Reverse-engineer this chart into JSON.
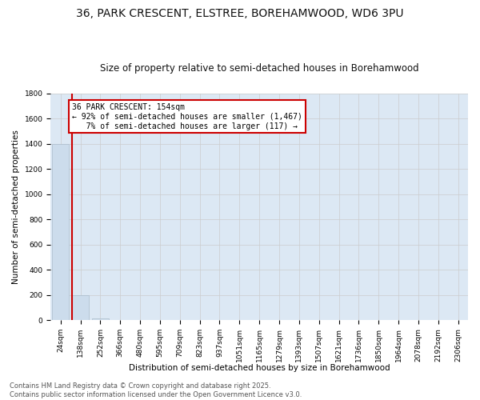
{
  "title": "36, PARK CRESCENT, ELSTREE, BOREHAMWOOD, WD6 3PU",
  "subtitle": "Size of property relative to semi-detached houses in Borehamwood",
  "xlabel": "Distribution of semi-detached houses by size in Borehamwood",
  "ylabel": "Number of semi-detached properties",
  "categories": [
    "24sqm",
    "138sqm",
    "252sqm",
    "366sqm",
    "480sqm",
    "595sqm",
    "709sqm",
    "823sqm",
    "937sqm",
    "1051sqm",
    "1165sqm",
    "1279sqm",
    "1393sqm",
    "1507sqm",
    "1621sqm",
    "1736sqm",
    "1850sqm",
    "1964sqm",
    "2078sqm",
    "2192sqm",
    "2306sqm"
  ],
  "values": [
    1400,
    200,
    15,
    5,
    2,
    0,
    0,
    0,
    0,
    0,
    0,
    0,
    0,
    0,
    0,
    0,
    0,
    0,
    0,
    0,
    0
  ],
  "bar_color": "#ccdcec",
  "bar_edge_color": "#aabccc",
  "vline_color": "#cc0000",
  "annotation_line1": "36 PARK CRESCENT: 154sqm",
  "annotation_line2": "← 92% of semi-detached houses are smaller (1,467)",
  "annotation_line3": "   7% of semi-detached houses are larger (117) →",
  "annotation_box_color": "#cc0000",
  "annotation_bg_color": "#ffffff",
  "ylim": [
    0,
    1800
  ],
  "yticks": [
    0,
    200,
    400,
    600,
    800,
    1000,
    1200,
    1400,
    1600,
    1800
  ],
  "grid_color": "#cccccc",
  "bg_color": "#dce8f4",
  "footer_text": "Contains HM Land Registry data © Crown copyright and database right 2025.\nContains public sector information licensed under the Open Government Licence v3.0.",
  "title_fontsize": 10,
  "subtitle_fontsize": 8.5,
  "axis_label_fontsize": 7.5,
  "tick_fontsize": 6.5,
  "annotation_fontsize": 7,
  "footer_fontsize": 6
}
